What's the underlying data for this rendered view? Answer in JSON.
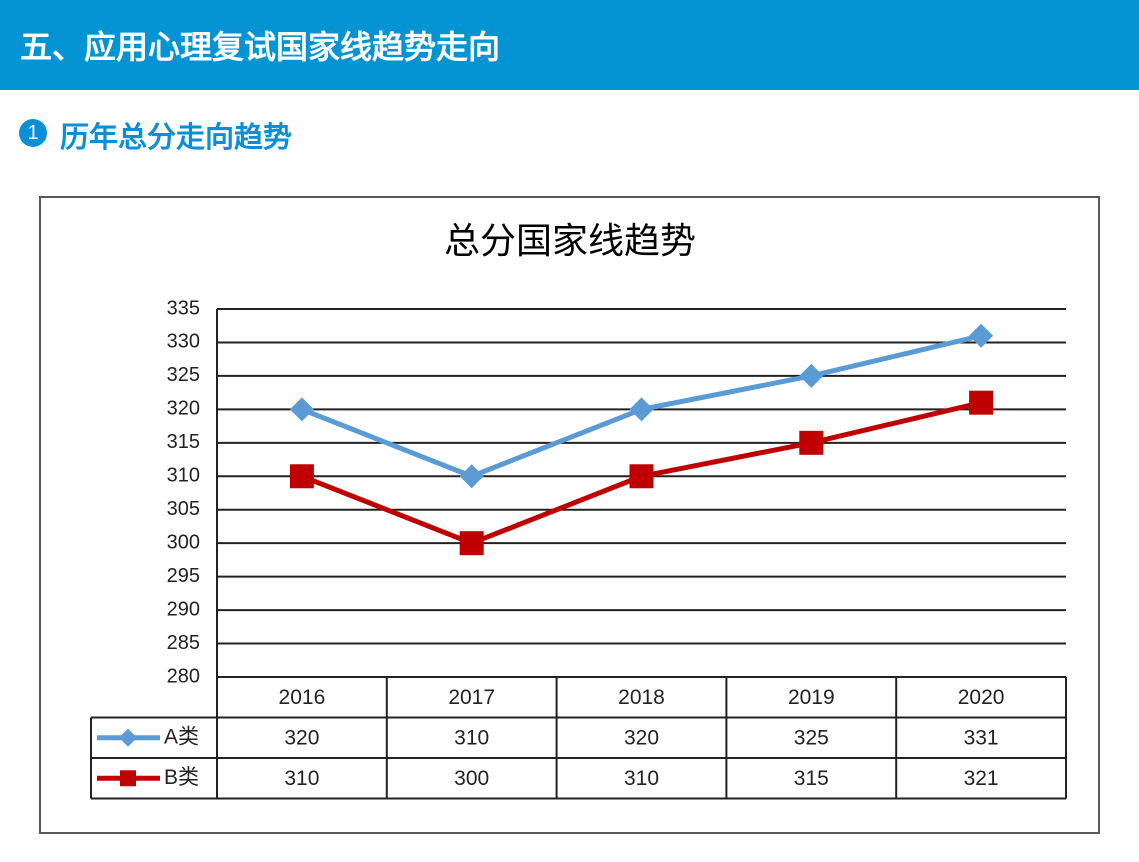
{
  "header": {
    "title": "五、应用心理复试国家线趋势走向",
    "section_number": "1",
    "section_title": "历年总分走向趋势"
  },
  "chart_data": {
    "type": "line",
    "title": "总分国家线趋势",
    "categories": [
      "2016",
      "2017",
      "2018",
      "2019",
      "2020"
    ],
    "series": [
      {
        "name": "A类",
        "color": "#5b9bd5",
        "marker": "diamond",
        "values": [
          320,
          310,
          320,
          325,
          331
        ]
      },
      {
        "name": "B类",
        "color": "#c00000",
        "marker": "square",
        "values": [
          310,
          300,
          310,
          315,
          321
        ]
      }
    ],
    "ylim": [
      280,
      335
    ],
    "yticks": [
      280,
      285,
      290,
      295,
      300,
      305,
      310,
      315,
      320,
      325,
      330,
      335
    ],
    "grid": true,
    "data_table": true
  }
}
